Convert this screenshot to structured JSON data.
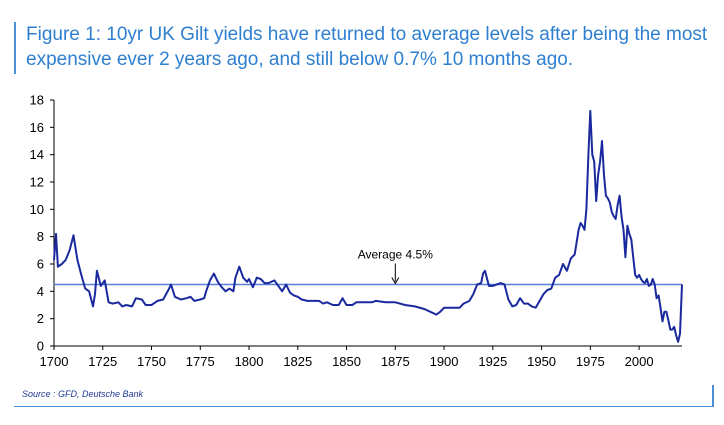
{
  "title": "Figure 1: 10yr UK Gilt yields have returned to average levels after being the most expensive ever 2 years ago, and still below 0.7% 10 months ago.",
  "source": "Source : GFD, Deutsche Bank",
  "colors": {
    "accent": "#2f7fd1",
    "series": "#1a2a9e",
    "average": "#5b7fd8"
  },
  "chart_data": {
    "type": "line",
    "title": "",
    "xlabel": "",
    "ylabel": "",
    "xlim": [
      1700,
      2022
    ],
    "ylim": [
      0,
      18
    ],
    "x_ticks": [
      1700,
      1725,
      1750,
      1775,
      1800,
      1825,
      1850,
      1875,
      1900,
      1925,
      1950,
      1975,
      2000
    ],
    "y_ticks": [
      0,
      2,
      4,
      6,
      8,
      10,
      12,
      14,
      16,
      18
    ],
    "grid": false,
    "reference_line": {
      "value": 4.5,
      "label": "Average 4.5%",
      "label_x": 1875
    },
    "series": [
      {
        "name": "",
        "points": [
          [
            1700,
            6.3
          ],
          [
            1701,
            8.2
          ],
          [
            1702,
            5.8
          ],
          [
            1704,
            6.0
          ],
          [
            1706,
            6.3
          ],
          [
            1708,
            7.0
          ],
          [
            1710,
            8.1
          ],
          [
            1712,
            6.3
          ],
          [
            1714,
            5.2
          ],
          [
            1716,
            4.2
          ],
          [
            1718,
            4.0
          ],
          [
            1720,
            2.9
          ],
          [
            1721,
            3.8
          ],
          [
            1722,
            5.5
          ],
          [
            1724,
            4.4
          ],
          [
            1726,
            4.8
          ],
          [
            1728,
            3.2
          ],
          [
            1730,
            3.1
          ],
          [
            1733,
            3.2
          ],
          [
            1735,
            2.9
          ],
          [
            1737,
            3.0
          ],
          [
            1740,
            2.9
          ],
          [
            1742,
            3.5
          ],
          [
            1745,
            3.4
          ],
          [
            1747,
            3.0
          ],
          [
            1750,
            3.0
          ],
          [
            1753,
            3.3
          ],
          [
            1756,
            3.4
          ],
          [
            1759,
            4.2
          ],
          [
            1760,
            4.5
          ],
          [
            1762,
            3.6
          ],
          [
            1765,
            3.4
          ],
          [
            1768,
            3.5
          ],
          [
            1770,
            3.6
          ],
          [
            1772,
            3.3
          ],
          [
            1775,
            3.4
          ],
          [
            1777,
            3.5
          ],
          [
            1778,
            4.0
          ],
          [
            1780,
            4.8
          ],
          [
            1782,
            5.3
          ],
          [
            1784,
            4.7
          ],
          [
            1786,
            4.3
          ],
          [
            1788,
            4.0
          ],
          [
            1790,
            4.2
          ],
          [
            1792,
            4.0
          ],
          [
            1793,
            5.0
          ],
          [
            1795,
            5.8
          ],
          [
            1797,
            5.0
          ],
          [
            1799,
            4.7
          ],
          [
            1800,
            4.9
          ],
          [
            1802,
            4.3
          ],
          [
            1804,
            5.0
          ],
          [
            1806,
            4.9
          ],
          [
            1808,
            4.6
          ],
          [
            1810,
            4.6
          ],
          [
            1813,
            4.8
          ],
          [
            1815,
            4.4
          ],
          [
            1817,
            4.0
          ],
          [
            1819,
            4.5
          ],
          [
            1821,
            3.9
          ],
          [
            1823,
            3.7
          ],
          [
            1825,
            3.6
          ],
          [
            1827,
            3.4
          ],
          [
            1830,
            3.3
          ],
          [
            1833,
            3.3
          ],
          [
            1836,
            3.3
          ],
          [
            1838,
            3.1
          ],
          [
            1840,
            3.2
          ],
          [
            1843,
            3.0
          ],
          [
            1846,
            3.0
          ],
          [
            1848,
            3.5
          ],
          [
            1850,
            3.0
          ],
          [
            1853,
            3.0
          ],
          [
            1855,
            3.2
          ],
          [
            1858,
            3.2
          ],
          [
            1860,
            3.2
          ],
          [
            1863,
            3.2
          ],
          [
            1865,
            3.3
          ],
          [
            1870,
            3.2
          ],
          [
            1875,
            3.2
          ],
          [
            1880,
            3.0
          ],
          [
            1885,
            2.9
          ],
          [
            1890,
            2.7
          ],
          [
            1893,
            2.5
          ],
          [
            1896,
            2.3
          ],
          [
            1898,
            2.5
          ],
          [
            1900,
            2.8
          ],
          [
            1903,
            2.8
          ],
          [
            1905,
            2.8
          ],
          [
            1908,
            2.8
          ],
          [
            1910,
            3.1
          ],
          [
            1913,
            3.3
          ],
          [
            1915,
            3.8
          ],
          [
            1917,
            4.5
          ],
          [
            1919,
            4.6
          ],
          [
            1920,
            5.3
          ],
          [
            1921,
            5.5
          ],
          [
            1923,
            4.4
          ],
          [
            1925,
            4.4
          ],
          [
            1927,
            4.5
          ],
          [
            1929,
            4.6
          ],
          [
            1931,
            4.5
          ],
          [
            1933,
            3.4
          ],
          [
            1935,
            2.9
          ],
          [
            1937,
            3.0
          ],
          [
            1939,
            3.5
          ],
          [
            1941,
            3.1
          ],
          [
            1943,
            3.1
          ],
          [
            1945,
            2.9
          ],
          [
            1947,
            2.8
          ],
          [
            1949,
            3.3
          ],
          [
            1951,
            3.8
          ],
          [
            1953,
            4.1
          ],
          [
            1955,
            4.2
          ],
          [
            1957,
            5.0
          ],
          [
            1959,
            5.2
          ],
          [
            1961,
            6.0
          ],
          [
            1963,
            5.5
          ],
          [
            1965,
            6.4
          ],
          [
            1967,
            6.7
          ],
          [
            1969,
            8.5
          ],
          [
            1970,
            9.0
          ],
          [
            1971,
            8.8
          ],
          [
            1972,
            8.5
          ],
          [
            1973,
            10.0
          ],
          [
            1974,
            14.0
          ],
          [
            1975,
            17.2
          ],
          [
            1976,
            14.0
          ],
          [
            1977,
            13.5
          ],
          [
            1978,
            10.6
          ],
          [
            1979,
            12.5
          ],
          [
            1980,
            13.5
          ],
          [
            1981,
            15.0
          ],
          [
            1982,
            12.5
          ],
          [
            1983,
            11.0
          ],
          [
            1984,
            10.8
          ],
          [
            1985,
            10.5
          ],
          [
            1986,
            9.8
          ],
          [
            1987,
            9.5
          ],
          [
            1988,
            9.3
          ],
          [
            1989,
            10.3
          ],
          [
            1990,
            11.0
          ],
          [
            1991,
            9.5
          ],
          [
            1992,
            8.5
          ],
          [
            1993,
            6.5
          ],
          [
            1994,
            8.8
          ],
          [
            1995,
            8.2
          ],
          [
            1996,
            7.8
          ],
          [
            1997,
            6.5
          ],
          [
            1998,
            5.2
          ],
          [
            1999,
            5.0
          ],
          [
            2000,
            5.2
          ],
          [
            2001,
            4.9
          ],
          [
            2002,
            4.7
          ],
          [
            2003,
            4.6
          ],
          [
            2004,
            4.9
          ],
          [
            2005,
            4.4
          ],
          [
            2006,
            4.5
          ],
          [
            2007,
            4.9
          ],
          [
            2008,
            4.5
          ],
          [
            2009,
            3.5
          ],
          [
            2010,
            3.7
          ],
          [
            2011,
            2.8
          ],
          [
            2012,
            1.8
          ],
          [
            2013,
            2.5
          ],
          [
            2014,
            2.5
          ],
          [
            2015,
            1.9
          ],
          [
            2016,
            1.2
          ],
          [
            2017,
            1.2
          ],
          [
            2018,
            1.4
          ],
          [
            2019,
            0.8
          ],
          [
            2020,
            0.3
          ],
          [
            2021,
            0.9
          ],
          [
            2022,
            4.5
          ]
        ]
      }
    ]
  }
}
